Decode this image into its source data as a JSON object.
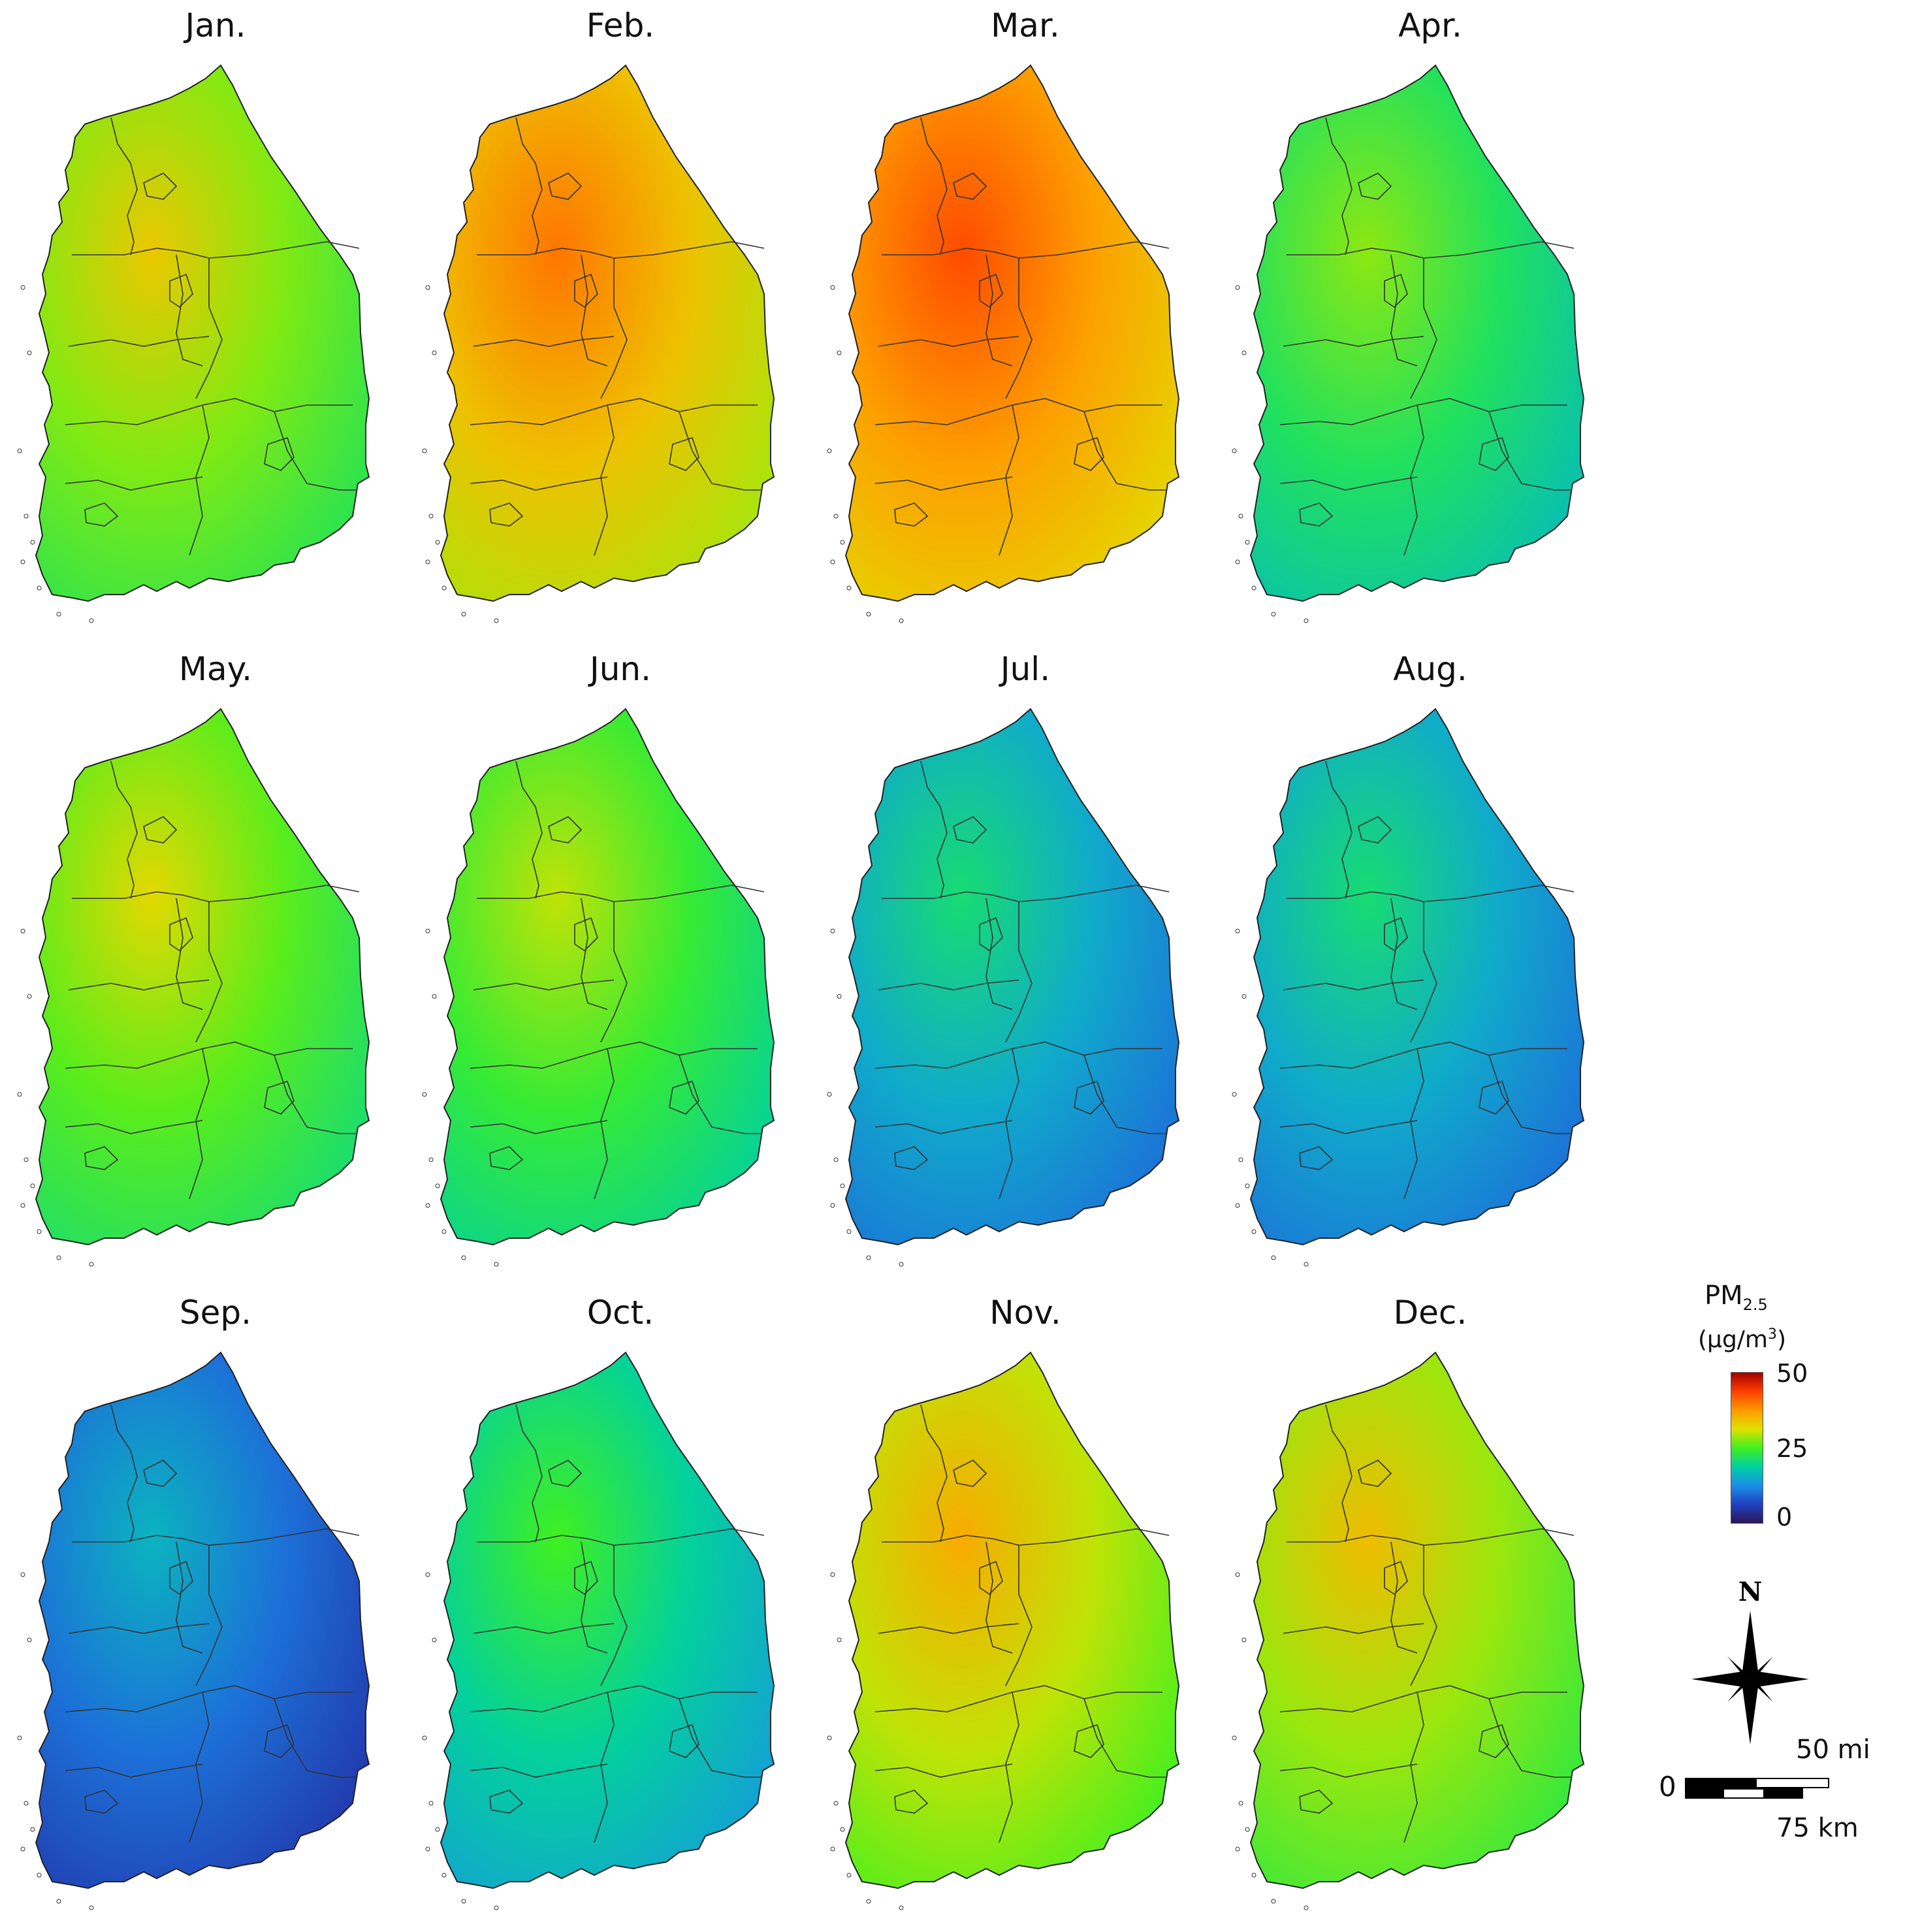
{
  "panels": [
    {
      "month": "Jan.",
      "level": 0.55
    },
    {
      "month": "Feb.",
      "level": 0.68
    },
    {
      "month": "Mar.",
      "level": 0.74
    },
    {
      "month": "Apr.",
      "level": 0.44
    },
    {
      "month": "May.",
      "level": 0.52
    },
    {
      "month": "Jun.",
      "level": 0.48
    },
    {
      "month": "Jul.",
      "level": 0.3
    },
    {
      "month": "Aug.",
      "level": 0.3
    },
    {
      "month": "Sep.",
      "level": 0.2
    },
    {
      "month": "Oct.",
      "level": 0.38
    },
    {
      "month": "Nov.",
      "level": 0.6
    },
    {
      "month": "Dec.",
      "level": 0.57
    }
  ],
  "legend": {
    "title": "PM",
    "title_sub": "2.5",
    "unit_prefix": "(μg/m",
    "unit_sup": "3",
    "unit_suffix": ")",
    "ticks": [
      "50",
      "25",
      "0"
    ],
    "gradient_colors": [
      "#a50000",
      "#ff4000",
      "#ff9a00",
      "#e0e000",
      "#40f020",
      "#00d0a0",
      "#1a90e8",
      "#2040c0",
      "#2a1858"
    ]
  },
  "north": {
    "label": "N"
  },
  "scale": {
    "zero": "0",
    "miles": "50 mi",
    "km": "75 km"
  }
}
